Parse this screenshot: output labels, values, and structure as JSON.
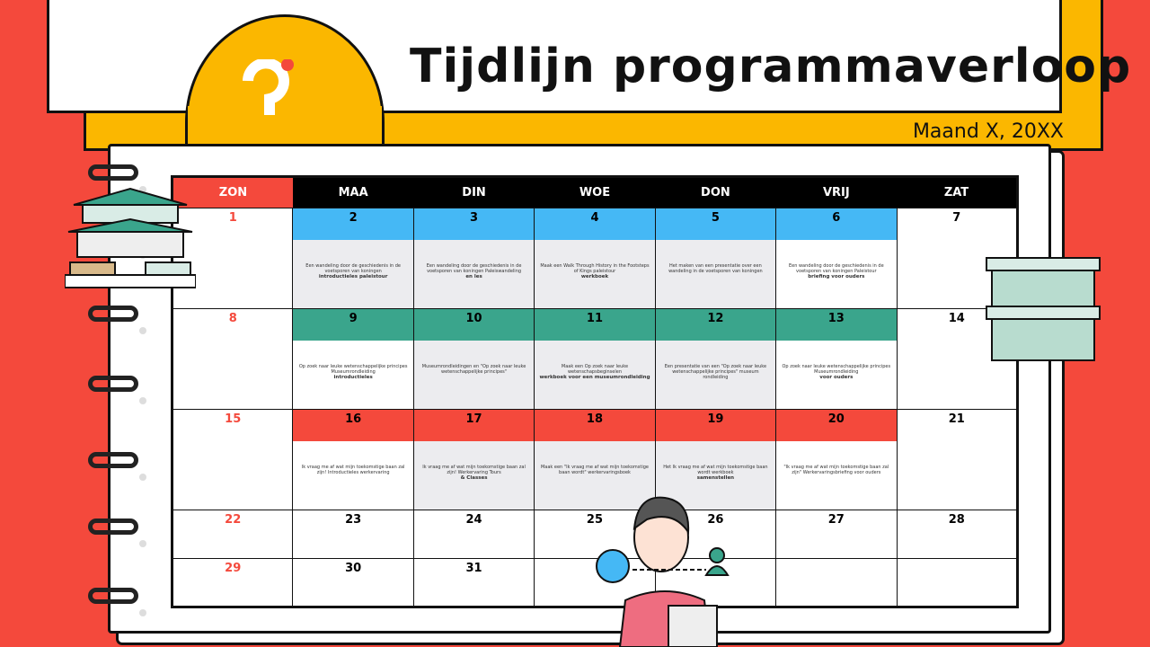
{
  "header": {
    "title": "Tijdlijn programmaverloop",
    "subtitle": "Maand X, 20XX"
  },
  "colors": {
    "background": "#f4493c",
    "accent": "#fbb700",
    "week1": "#45b8f5",
    "week2": "#3aa58c",
    "week3": "#f4493c"
  },
  "days": [
    "ZON",
    "MAA",
    "DIN",
    "WOE",
    "DON",
    "VRIJ",
    "ZAT"
  ],
  "weeks": [
    {
      "cells": [
        {
          "day": "1"
        },
        {
          "day": "2",
          "text": "Een wandeling door de geschiedenis in de voetsporen van koningen",
          "bold": "introductieles paleistour",
          "gray": true
        },
        {
          "day": "3",
          "text": "Een wandeling door de geschiedenis in de voetsporen van koningen Paleiswandeling",
          "bold": "en les",
          "gray": true
        },
        {
          "day": "4",
          "text": "Maak een Walk Through History in the Footsteps of Kings paleistour",
          "bold": "werkboek",
          "gray": true
        },
        {
          "day": "5",
          "text": "Het maken van een presentatie over een wandeling in de voetsporen van koningen",
          "bold": "",
          "gray": true
        },
        {
          "day": "6",
          "text": "Een wandeling door de geschiedenis in de voetsporen van koningen Paleistour",
          "bold": "briefing voor ouders"
        },
        {
          "day": "7"
        }
      ]
    },
    {
      "cells": [
        {
          "day": "8"
        },
        {
          "day": "9",
          "text": "Op zoek naar leuke wetenschappelijke principes Museumrondleiding",
          "bold": "introductieles"
        },
        {
          "day": "10",
          "text": "Museumrondleidingen en \"Op zoek naar leuke wetenschappelijke principes\"",
          "bold": "",
          "gray": true
        },
        {
          "day": "11",
          "text": "Maak een Op zoek naar leuke wetenschapsbeginselen",
          "bold": "werkboek voor een museumrondleiding",
          "gray": true
        },
        {
          "day": "12",
          "text": "Een presentatie van een \"Op zoek naar leuke wetenschappelijke principes\" museum rondleiding",
          "bold": "",
          "gray": true
        },
        {
          "day": "13",
          "text": "Op zoek naar leuke wetenschappelijke principes Museumrondleiding",
          "bold": "voor ouders"
        },
        {
          "day": "14"
        }
      ]
    },
    {
      "cells": [
        {
          "day": "15"
        },
        {
          "day": "16",
          "text": "Ik vraag me af wat mijn toekomstige baan zal zijn! Introductieles werkervaring",
          "bold": ""
        },
        {
          "day": "17",
          "text": "Ik vraag me af wat mijn toekomstige baan zal zijn! Werkervaring Tours",
          "bold": "& Classes",
          "gray": true
        },
        {
          "day": "18",
          "text": "Maak een \"Ik vraag me af wat mijn toekomstige baan wordt\" werkervaringsboek",
          "bold": "",
          "gray": true
        },
        {
          "day": "19",
          "text": "Het Ik vraag me af wat mijn toekomstige baan wordt werkboek",
          "bold": "samenstellen",
          "gray": true
        },
        {
          "day": "20",
          "text": "\"Ik vraag me af wat mijn toekomstige baan zal zijn\" Werkervaringsbriefing voor ouders",
          "bold": ""
        },
        {
          "day": "21"
        }
      ]
    }
  ],
  "short_weeks": [
    [
      "22",
      "23",
      "24",
      "25",
      "26",
      "27",
      "28"
    ],
    [
      "29",
      "30",
      "31",
      "",
      "",
      "",
      ""
    ]
  ]
}
